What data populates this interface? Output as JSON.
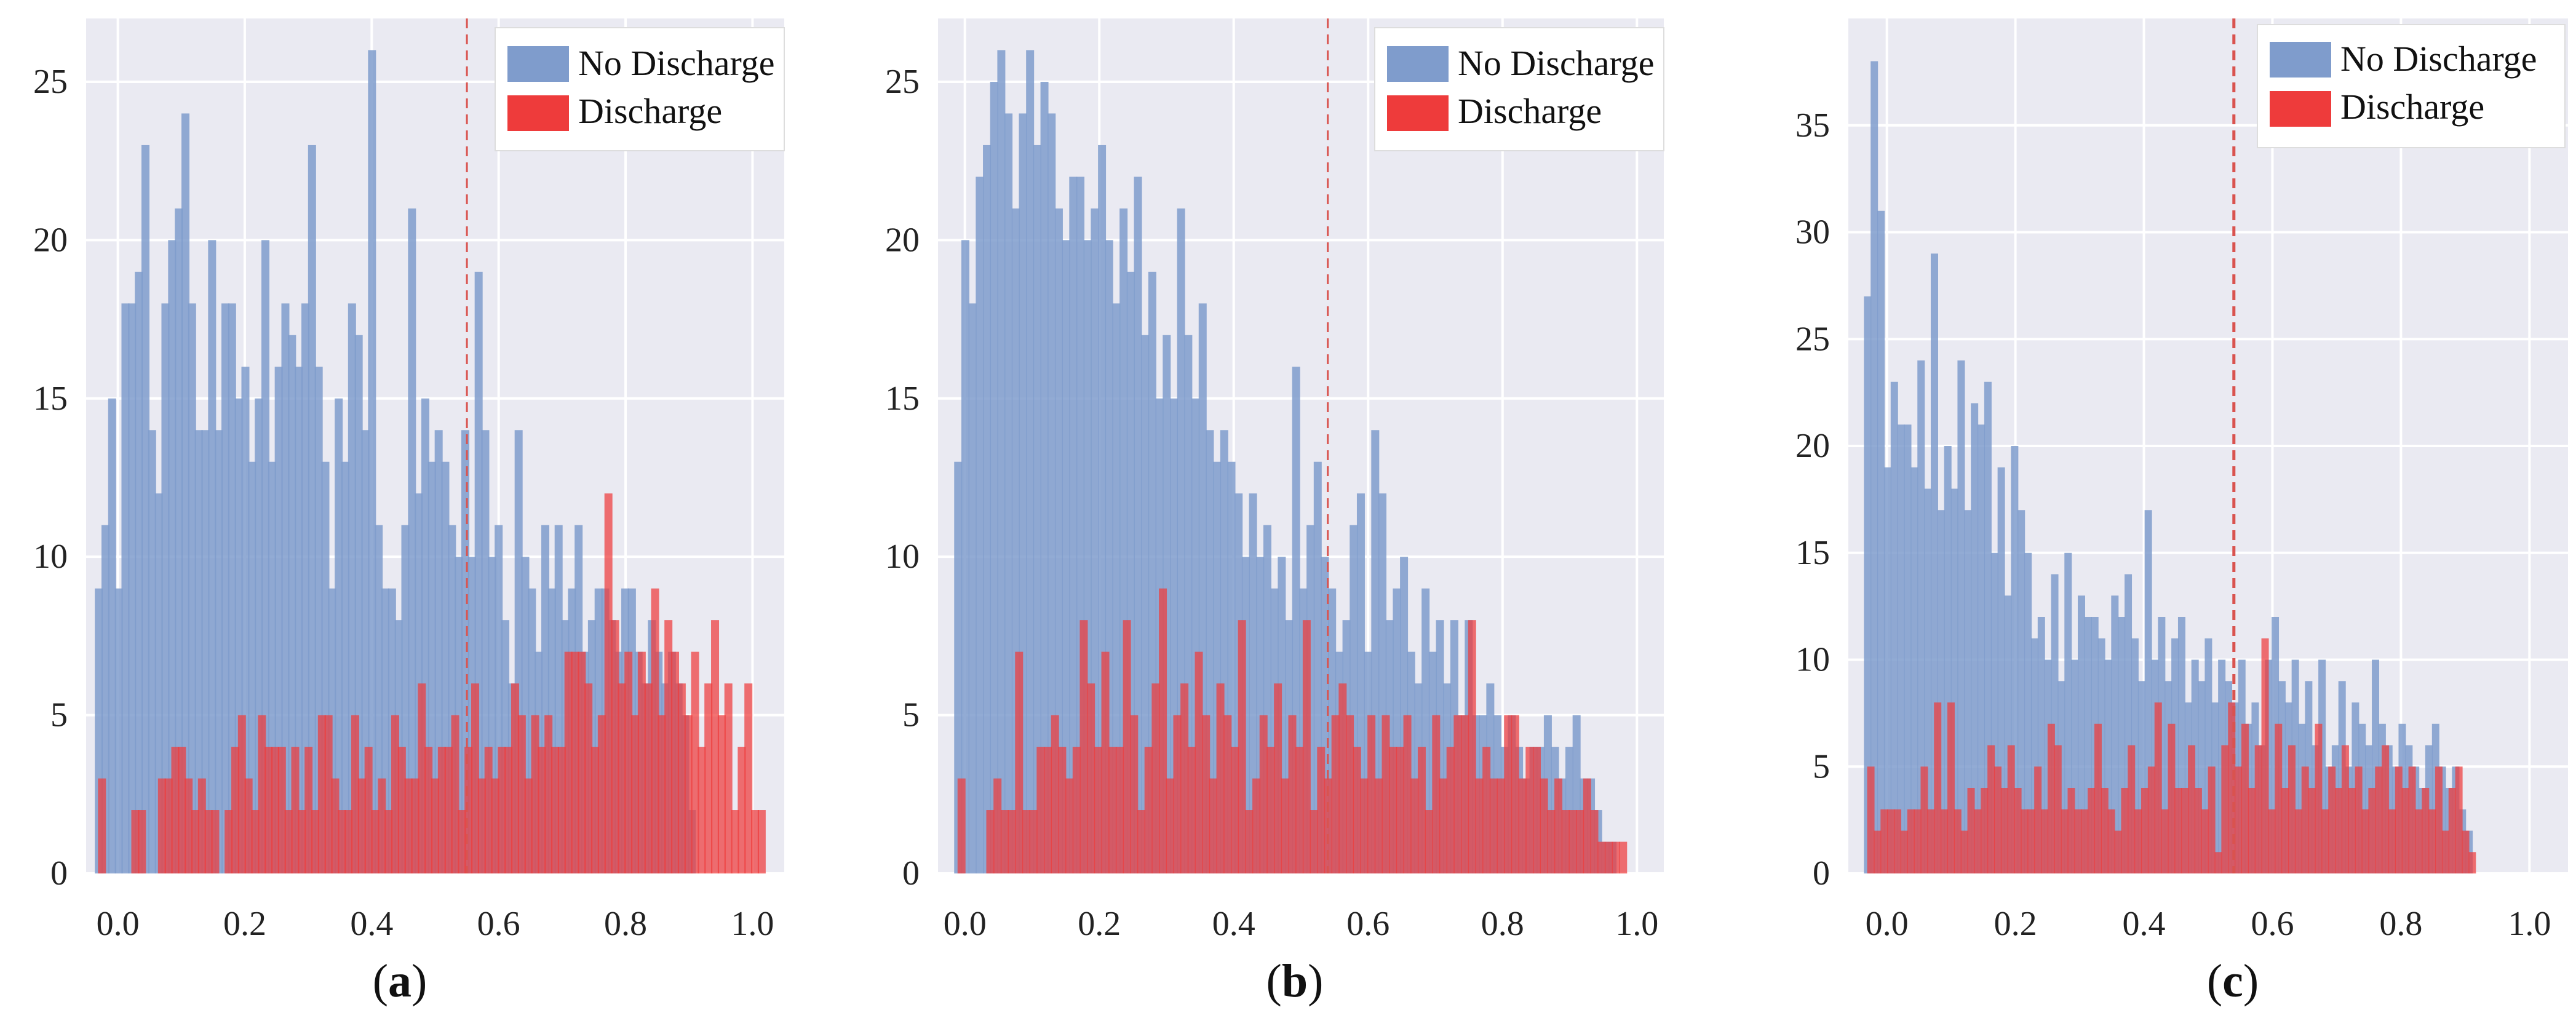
{
  "colors": {
    "plot_bg": "#EAEAF2",
    "grid": "#FFFFFF",
    "no_discharge": "#7F9CCC",
    "discharge": "#EE3B3B",
    "threshold": "#D9534F"
  },
  "chart_data": [
    {
      "type": "bar",
      "panel": "(a)",
      "panel_open": "(",
      "panel_letter": "a",
      "panel_close": ")",
      "xlim": [
        -0.05,
        1.05
      ],
      "ylim": [
        0,
        27
      ],
      "xticks": [
        0.0,
        0.2,
        0.4,
        0.6,
        0.8,
        1.0
      ],
      "xtick_labels": [
        "0.0",
        "0.2",
        "0.4",
        "0.6",
        "0.8",
        "1.0"
      ],
      "yticks": [
        0,
        5,
        10,
        15,
        20,
        25
      ],
      "ytick_labels": [
        "0",
        "5",
        "10",
        "15",
        "20",
        "25"
      ],
      "threshold": 0.55,
      "legend": [
        "No Discharge",
        "Discharge"
      ],
      "series": [
        {
          "name": "No Discharge",
          "x0": -0.03,
          "dx": 0.0105,
          "values": [
            9,
            11,
            15,
            9,
            18,
            18,
            19,
            23,
            14,
            12,
            18,
            20,
            21,
            24,
            18,
            14,
            14,
            20,
            14,
            18,
            18,
            15,
            16,
            13,
            15,
            20,
            13,
            16,
            18,
            17,
            16,
            18,
            23,
            16,
            13,
            9,
            15,
            13,
            18,
            17,
            14,
            26,
            11,
            9,
            9,
            8,
            11,
            21,
            12,
            15,
            13,
            14,
            13,
            11,
            10,
            14,
            10,
            19,
            14,
            10,
            11,
            8,
            6,
            14,
            10,
            9,
            7,
            11,
            9,
            11,
            8,
            9,
            11,
            7,
            8,
            9,
            9,
            8,
            7,
            9,
            9,
            7,
            6,
            8,
            7,
            6,
            7,
            6,
            5,
            2
          ]
        },
        {
          "name": "Discharge",
          "x0": -0.025,
          "dx": 0.0105,
          "values": [
            3,
            0,
            0,
            0,
            0,
            2,
            2,
            0,
            0,
            3,
            3,
            4,
            4,
            3,
            2,
            3,
            2,
            2,
            0,
            2,
            4,
            5,
            3,
            2,
            5,
            4,
            4,
            4,
            2,
            4,
            2,
            4,
            2,
            5,
            5,
            3,
            2,
            2,
            5,
            3,
            4,
            2,
            3,
            2,
            5,
            4,
            3,
            3,
            6,
            4,
            3,
            4,
            4,
            5,
            2,
            4,
            6,
            3,
            4,
            3,
            4,
            4,
            6,
            5,
            3,
            5,
            4,
            5,
            4,
            4,
            7,
            7,
            7,
            6,
            4,
            5,
            12,
            8,
            6,
            7,
            5,
            7,
            6,
            9,
            5,
            8,
            7,
            6,
            5,
            7,
            4,
            6,
            8,
            5,
            6,
            2,
            4,
            6,
            2,
            2
          ]
        }
      ]
    },
    {
      "type": "bar",
      "panel": "(b)",
      "panel_open": "(",
      "panel_letter": "b",
      "panel_close": ")",
      "xlim": [
        -0.04,
        1.04
      ],
      "ylim": [
        0,
        27
      ],
      "xticks": [
        0.0,
        0.2,
        0.4,
        0.6,
        0.8,
        1.0
      ],
      "xtick_labels": [
        "0.0",
        "0.2",
        "0.4",
        "0.6",
        "0.8",
        "1.0"
      ],
      "yticks": [
        0,
        5,
        10,
        15,
        20,
        25
      ],
      "ytick_labels": [
        "0",
        "5",
        "10",
        "15",
        "20",
        "25"
      ],
      "threshold": 0.54,
      "legend": [
        "No Discharge",
        "Discharge"
      ],
      "series": [
        {
          "name": "No Discharge",
          "x0": -0.01,
          "dx": 0.0107,
          "values": [
            13,
            20,
            18,
            22,
            23,
            25,
            26,
            24,
            21,
            24,
            26,
            23,
            25,
            24,
            21,
            20,
            22,
            22,
            20,
            21,
            23,
            20,
            18,
            21,
            19,
            22,
            17,
            19,
            15,
            17,
            15,
            21,
            17,
            15,
            18,
            14,
            13,
            14,
            13,
            12,
            10,
            12,
            10,
            11,
            9,
            10,
            8,
            16,
            9,
            11,
            13,
            10,
            9,
            7,
            8,
            11,
            12,
            7,
            14,
            12,
            8,
            9,
            10,
            7,
            6,
            9,
            7,
            8,
            6,
            8,
            5,
            8,
            5,
            5,
            6,
            5,
            4,
            5,
            4,
            3,
            4,
            4,
            5,
            4,
            3,
            4,
            5,
            3,
            3,
            2,
            1,
            1
          ]
        },
        {
          "name": "Discharge",
          "x0": -0.005,
          "dx": 0.0107,
          "values": [
            3,
            0,
            0,
            0,
            2,
            3,
            2,
            2,
            7,
            2,
            2,
            4,
            4,
            5,
            4,
            3,
            4,
            8,
            6,
            4,
            7,
            4,
            4,
            8,
            5,
            2,
            4,
            6,
            9,
            3,
            5,
            6,
            4,
            7,
            5,
            3,
            6,
            5,
            4,
            8,
            2,
            3,
            5,
            4,
            6,
            3,
            5,
            4,
            8,
            2,
            4,
            3,
            5,
            6,
            5,
            4,
            3,
            5,
            3,
            5,
            4,
            4,
            5,
            3,
            4,
            2,
            5,
            3,
            4,
            5,
            5,
            8,
            3,
            4,
            3,
            3,
            5,
            5,
            3,
            4,
            4,
            3,
            2,
            3,
            2,
            2,
            2,
            3,
            2,
            1,
            1,
            1,
            1
          ]
        }
      ]
    },
    {
      "type": "bar",
      "panel": "(c)",
      "panel_open": "(",
      "panel_letter": "c",
      "panel_close": ")",
      "xlim": [
        -0.06,
        1.06
      ],
      "ylim": [
        0,
        40
      ],
      "xticks": [
        0.0,
        0.2,
        0.4,
        0.6,
        0.8,
        1.0
      ],
      "xtick_labels": [
        "0.0",
        "0.2",
        "0.4",
        "0.6",
        "0.8",
        "1.0"
      ],
      "yticks": [
        0,
        5,
        10,
        15,
        20,
        25,
        30,
        35
      ],
      "ytick_labels": [
        "0",
        "5",
        "10",
        "15",
        "20",
        "25",
        "30",
        "35"
      ],
      "threshold": 0.54,
      "legend": [
        "No Discharge",
        "Discharge"
      ],
      "series": [
        {
          "name": "No Discharge",
          "x0": -0.03,
          "dx": 0.0104,
          "values": [
            27,
            38,
            31,
            19,
            23,
            21,
            21,
            19,
            24,
            18,
            29,
            17,
            20,
            18,
            24,
            17,
            22,
            21,
            23,
            15,
            19,
            13,
            20,
            17,
            15,
            11,
            12,
            10,
            14,
            9,
            15,
            10,
            13,
            12,
            12,
            11,
            10,
            13,
            12,
            14,
            11,
            9,
            17,
            10,
            12,
            9,
            11,
            12,
            8,
            10,
            9,
            11,
            8,
            10,
            9,
            8,
            10,
            7,
            8,
            6,
            10,
            12,
            9,
            8,
            10,
            7,
            9,
            6,
            10,
            5,
            6,
            9,
            5,
            8,
            7,
            6,
            10,
            7,
            6,
            5,
            7,
            6,
            5,
            4,
            6,
            7,
            5,
            4,
            5,
            3,
            2
          ]
        },
        {
          "name": "Discharge",
          "x0": -0.025,
          "dx": 0.0104,
          "values": [
            5,
            2,
            3,
            3,
            3,
            2,
            3,
            3,
            5,
            3,
            8,
            3,
            8,
            3,
            2,
            4,
            3,
            4,
            6,
            5,
            4,
            6,
            4,
            3,
            3,
            5,
            3,
            7,
            6,
            3,
            4,
            3,
            3,
            4,
            7,
            4,
            3,
            2,
            4,
            6,
            3,
            4,
            5,
            8,
            3,
            7,
            4,
            4,
            6,
            4,
            3,
            5,
            1,
            6,
            8,
            5,
            7,
            4,
            6,
            11,
            3,
            7,
            4,
            6,
            3,
            5,
            4,
            7,
            3,
            5,
            4,
            6,
            4,
            5,
            3,
            4,
            5,
            6,
            3,
            5,
            4,
            5,
            3,
            4,
            3,
            5,
            2,
            4,
            5,
            2,
            1
          ]
        }
      ]
    }
  ]
}
